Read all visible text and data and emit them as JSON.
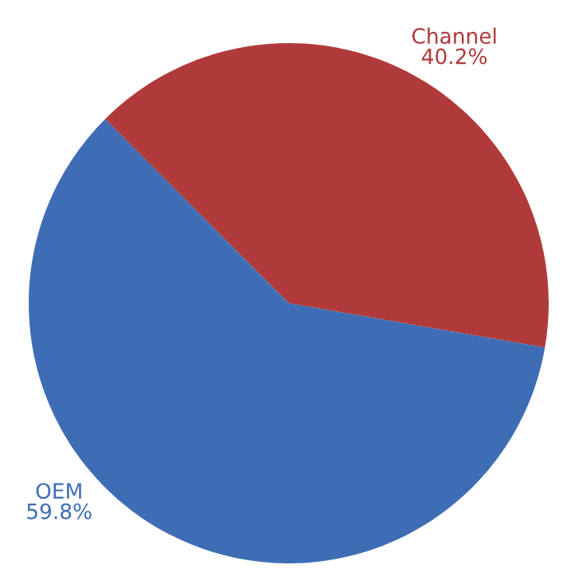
{
  "chart_data": {
    "type": "pie",
    "categories": [
      "Channel",
      "OEM"
    ],
    "values": [
      40.2,
      59.8
    ],
    "value_labels": [
      "40.2%",
      "59.8%"
    ],
    "colors": [
      "#b03a3a",
      "#3f6db5"
    ]
  }
}
